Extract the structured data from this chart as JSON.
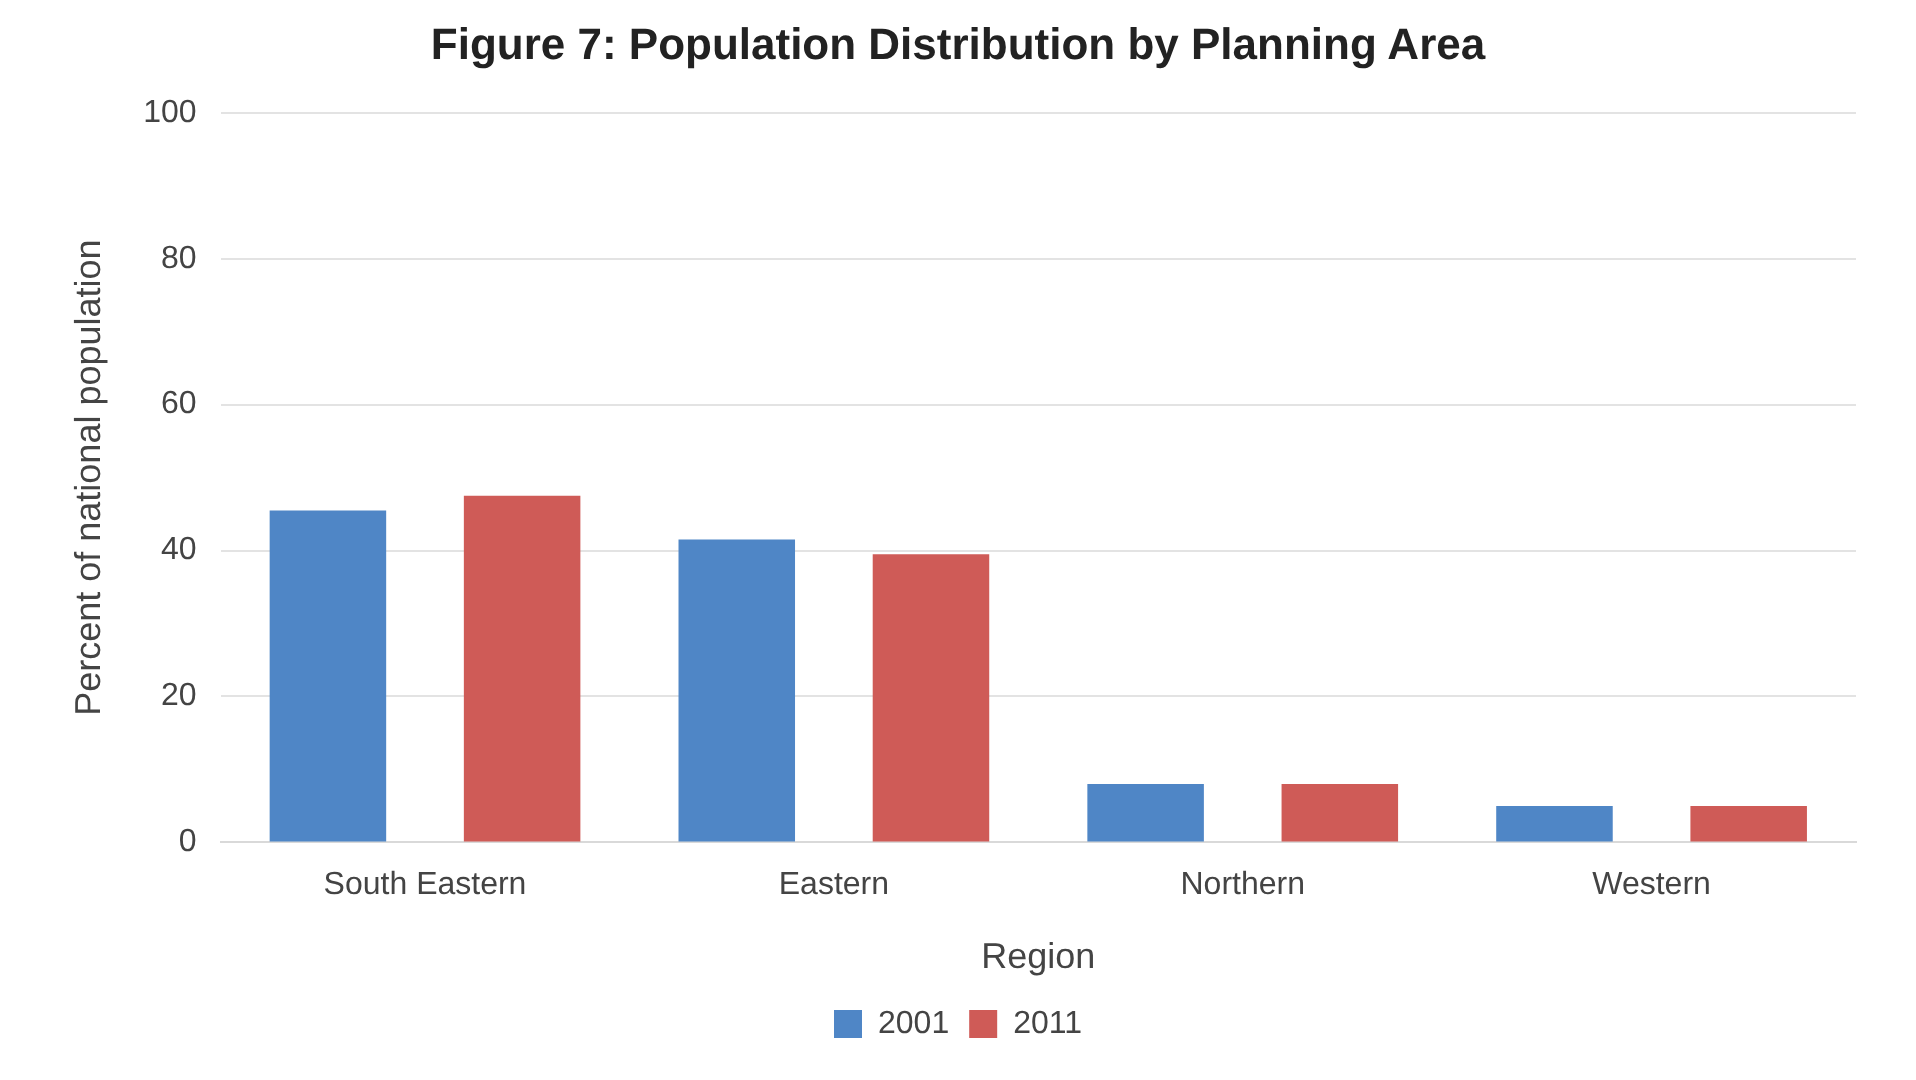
{
  "chart_data": {
    "type": "bar",
    "title": "Figure 7: Population Distribution by Planning Area",
    "xlabel": "Region",
    "ylabel": "Percent of national population",
    "categories": [
      "South Eastern",
      "Eastern",
      "Northern",
      "Western"
    ],
    "series": [
      {
        "name": "2001",
        "color": "#4f86c6",
        "values": [
          45.5,
          41.5,
          8,
          5
        ]
      },
      {
        "name": "2011",
        "color": "#cf5b57",
        "values": [
          47.5,
          39.5,
          8,
          5
        ]
      }
    ],
    "ylim": [
      0,
      100
    ],
    "yticks": [
      0,
      20,
      40,
      60,
      80,
      100
    ],
    "grid": "y",
    "legend": "bottom"
  }
}
